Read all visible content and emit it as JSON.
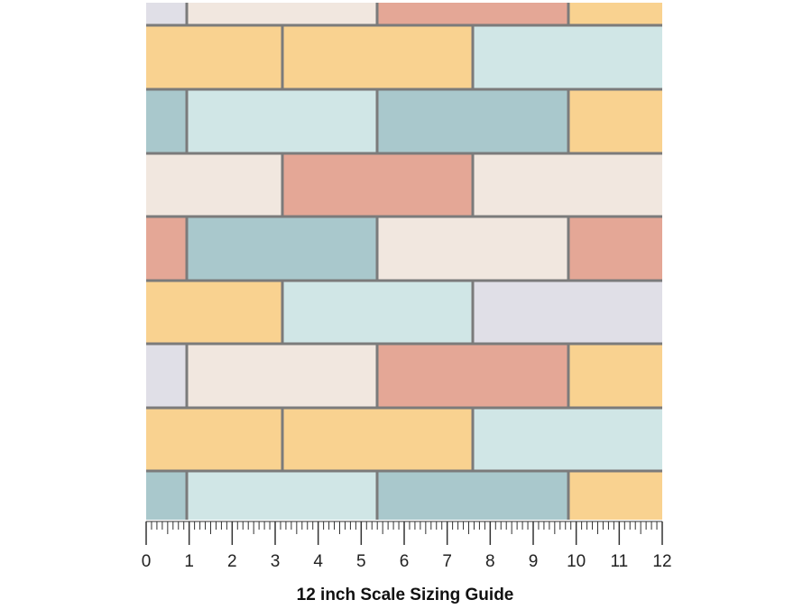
{
  "ruler": {
    "labels": [
      0,
      1,
      2,
      3,
      4,
      5,
      6,
      7,
      8,
      9,
      10,
      11,
      12
    ]
  },
  "caption": "12 inch Scale Sizing Guide"
}
